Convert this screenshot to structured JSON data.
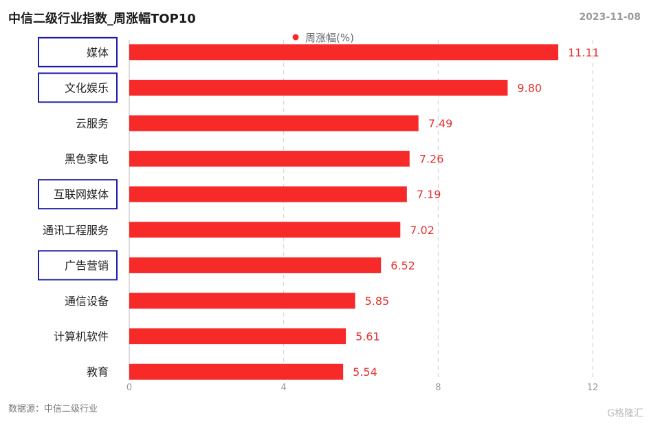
{
  "header": {
    "title": "中信二级行业指数_周涨幅TOP10",
    "date": "2023-11-08"
  },
  "footer": {
    "source": "数据源：中信二级行业",
    "logo": "G格隆汇"
  },
  "colors": {
    "bar": "#f72a2a",
    "label": "#e53030",
    "highlight_box": "#1a1aa8",
    "grid": "#cfcfcf"
  },
  "chart_data": {
    "type": "bar",
    "orientation": "horizontal",
    "title": "中信二级行业指数_周涨幅TOP10",
    "categories": [
      "媒体",
      "文化娱乐",
      "云服务",
      "黑色家电",
      "互联网媒体",
      "通讯工程服务",
      "广告营销",
      "通信设备",
      "计算机软件",
      "教育"
    ],
    "series": [
      {
        "name": "周涨幅(%)",
        "values": [
          11.11,
          9.8,
          7.49,
          7.26,
          7.19,
          7.02,
          6.52,
          5.85,
          5.61,
          5.54
        ]
      }
    ],
    "xlim": [
      0,
      12
    ],
    "xticks": [
      0,
      4,
      8,
      12
    ],
    "grid": "vertical dashed",
    "legend": "top-center",
    "highlighted_categories": [
      "媒体",
      "文化娱乐",
      "互联网媒体",
      "广告营销"
    ]
  }
}
